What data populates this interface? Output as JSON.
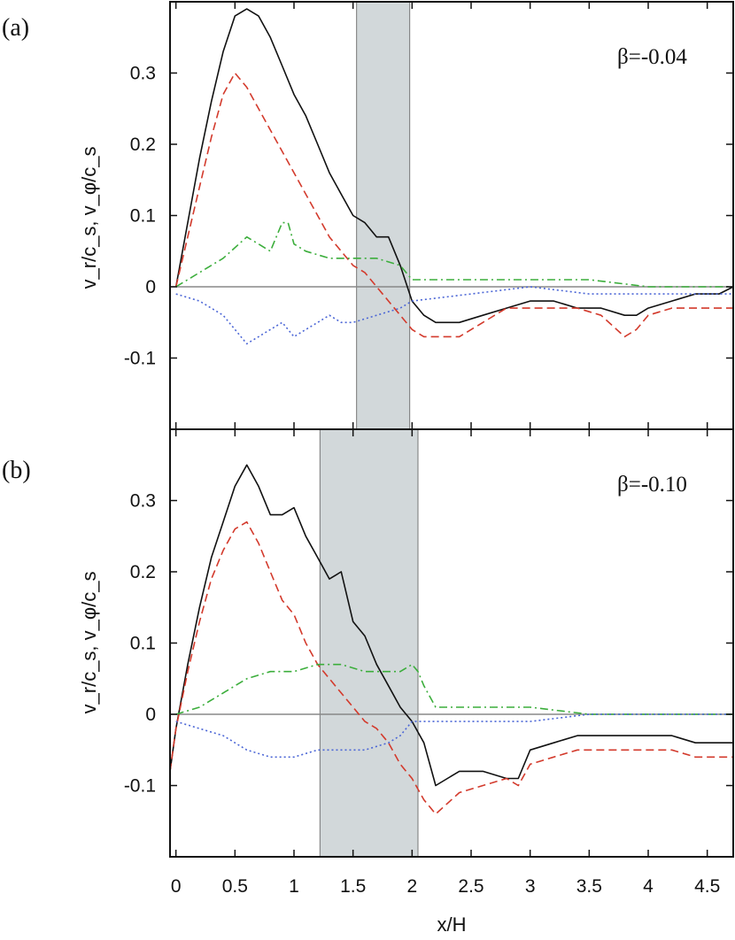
{
  "figure": {
    "xlabel": "x/H",
    "ylabel_a": "v_r/c_s, v_φ/c_s",
    "ylabel_b": "v_r/c_s, v_φ/c_s",
    "xlim": [
      -0.05,
      4.72
    ],
    "xticks": [
      "0",
      "0.5",
      "1",
      "1.5",
      "2",
      "2.5",
      "3",
      "3.5",
      "4",
      "4.5"
    ],
    "xtick_values": [
      0,
      0.5,
      1,
      1.5,
      2,
      2.5,
      3,
      3.5,
      4,
      4.5
    ],
    "yticks": [
      "0.3",
      "0.2",
      "0.1",
      "0",
      "-0.1"
    ],
    "ytick_values": [
      0.3,
      0.2,
      0.1,
      0,
      -0.1
    ],
    "shade_color": "#d2d8da",
    "zero_line_color": "#888888"
  },
  "chart_data": [
    {
      "type": "line",
      "panel_label": "(a)",
      "annotation": "β=-0.04",
      "ylim": [
        -0.2,
        0.4
      ],
      "shaded_region": [
        1.53,
        1.98
      ],
      "series": [
        {
          "color": "#111111",
          "style": "solid",
          "x": [
            0,
            0.1,
            0.2,
            0.3,
            0.4,
            0.5,
            0.6,
            0.7,
            0.8,
            0.9,
            1.0,
            1.1,
            1.2,
            1.3,
            1.4,
            1.5,
            1.6,
            1.7,
            1.8,
            1.9,
            2.0,
            2.1,
            2.2,
            2.4,
            2.6,
            2.8,
            3.0,
            3.2,
            3.4,
            3.6,
            3.8,
            3.9,
            4.0,
            4.2,
            4.4,
            4.6,
            4.72
          ],
          "y": [
            0.0,
            0.09,
            0.18,
            0.26,
            0.33,
            0.38,
            0.39,
            0.38,
            0.35,
            0.31,
            0.27,
            0.24,
            0.2,
            0.16,
            0.13,
            0.1,
            0.09,
            0.07,
            0.07,
            0.03,
            -0.02,
            -0.04,
            -0.05,
            -0.05,
            -0.04,
            -0.03,
            -0.02,
            -0.02,
            -0.03,
            -0.03,
            -0.04,
            -0.04,
            -0.03,
            -0.02,
            -0.01,
            -0.01,
            0.0
          ]
        },
        {
          "color": "#d33a2c",
          "style": "dashed",
          "x": [
            0,
            0.1,
            0.2,
            0.3,
            0.4,
            0.5,
            0.6,
            0.7,
            0.8,
            0.9,
            1.0,
            1.1,
            1.2,
            1.3,
            1.4,
            1.5,
            1.6,
            1.7,
            1.8,
            1.9,
            2.0,
            2.1,
            2.2,
            2.4,
            2.6,
            2.8,
            3.0,
            3.2,
            3.4,
            3.6,
            3.8,
            3.9,
            4.0,
            4.2,
            4.4,
            4.6,
            4.72
          ],
          "y": [
            0.0,
            0.07,
            0.14,
            0.21,
            0.27,
            0.3,
            0.28,
            0.25,
            0.22,
            0.19,
            0.16,
            0.13,
            0.1,
            0.07,
            0.05,
            0.03,
            0.02,
            0.0,
            -0.02,
            -0.04,
            -0.06,
            -0.07,
            -0.07,
            -0.07,
            -0.05,
            -0.03,
            -0.03,
            -0.03,
            -0.03,
            -0.04,
            -0.07,
            -0.06,
            -0.04,
            -0.03,
            -0.03,
            -0.03,
            -0.03
          ]
        },
        {
          "color": "#3cae3c",
          "style": "dashdot",
          "x": [
            0,
            0.2,
            0.4,
            0.6,
            0.7,
            0.8,
            0.9,
            0.95,
            1.0,
            1.1,
            1.3,
            1.5,
            1.7,
            1.9,
            2.0,
            2.5,
            3.0,
            3.5,
            4.0,
            4.5,
            4.72
          ],
          "y": [
            0.0,
            0.02,
            0.04,
            0.07,
            0.06,
            0.05,
            0.09,
            0.09,
            0.06,
            0.05,
            0.04,
            0.04,
            0.04,
            0.03,
            0.01,
            0.01,
            0.01,
            0.01,
            0.0,
            0.0,
            0.0
          ]
        },
        {
          "color": "#4b66d6",
          "style": "dotted",
          "x": [
            0,
            0.2,
            0.4,
            0.6,
            0.7,
            0.8,
            0.9,
            1.0,
            1.1,
            1.2,
            1.3,
            1.4,
            1.5,
            1.7,
            1.9,
            2.0,
            2.5,
            3.0,
            3.5,
            4.0,
            4.5,
            4.72
          ],
          "y": [
            -0.01,
            -0.02,
            -0.04,
            -0.08,
            -0.07,
            -0.06,
            -0.05,
            -0.07,
            -0.06,
            -0.05,
            -0.04,
            -0.05,
            -0.05,
            -0.04,
            -0.03,
            -0.02,
            -0.01,
            0.0,
            -0.01,
            -0.01,
            -0.01,
            -0.01
          ]
        }
      ]
    },
    {
      "type": "line",
      "panel_label": "(b)",
      "annotation": "β=-0.10",
      "ylim": [
        -0.2,
        0.4
      ],
      "shaded_region": [
        1.22,
        2.05
      ],
      "series": [
        {
          "color": "#111111",
          "style": "solid",
          "x": [
            -0.05,
            0,
            0.1,
            0.2,
            0.3,
            0.4,
            0.5,
            0.6,
            0.7,
            0.8,
            0.9,
            1.0,
            1.1,
            1.2,
            1.3,
            1.4,
            1.5,
            1.6,
            1.7,
            1.8,
            1.9,
            2.0,
            2.1,
            2.2,
            2.4,
            2.6,
            2.8,
            2.9,
            3.0,
            3.2,
            3.4,
            3.6,
            3.8,
            4.0,
            4.2,
            4.4,
            4.6,
            4.72
          ],
          "y": [
            -0.08,
            -0.02,
            0.07,
            0.15,
            0.22,
            0.27,
            0.32,
            0.35,
            0.32,
            0.28,
            0.28,
            0.29,
            0.25,
            0.22,
            0.19,
            0.2,
            0.13,
            0.11,
            0.07,
            0.04,
            0.01,
            -0.01,
            -0.04,
            -0.1,
            -0.08,
            -0.08,
            -0.09,
            -0.09,
            -0.05,
            -0.04,
            -0.03,
            -0.03,
            -0.03,
            -0.03,
            -0.03,
            -0.04,
            -0.04,
            -0.04
          ]
        },
        {
          "color": "#d33a2c",
          "style": "dashed",
          "x": [
            -0.05,
            0,
            0.1,
            0.2,
            0.3,
            0.4,
            0.5,
            0.6,
            0.7,
            0.8,
            0.9,
            1.0,
            1.1,
            1.2,
            1.3,
            1.4,
            1.5,
            1.6,
            1.7,
            1.8,
            1.9,
            2.0,
            2.1,
            2.2,
            2.4,
            2.6,
            2.8,
            2.9,
            3.0,
            3.2,
            3.4,
            3.6,
            3.8,
            4.0,
            4.2,
            4.4,
            4.6,
            4.72
          ],
          "y": [
            -0.08,
            -0.02,
            0.06,
            0.13,
            0.19,
            0.23,
            0.26,
            0.27,
            0.24,
            0.2,
            0.16,
            0.14,
            0.1,
            0.07,
            0.05,
            0.03,
            0.01,
            -0.01,
            -0.02,
            -0.04,
            -0.07,
            -0.09,
            -0.12,
            -0.14,
            -0.11,
            -0.1,
            -0.09,
            -0.1,
            -0.07,
            -0.06,
            -0.05,
            -0.05,
            -0.05,
            -0.05,
            -0.05,
            -0.06,
            -0.06,
            -0.06
          ]
        },
        {
          "color": "#3cae3c",
          "style": "dashdot",
          "x": [
            0,
            0.2,
            0.4,
            0.6,
            0.8,
            1.0,
            1.2,
            1.4,
            1.6,
            1.8,
            1.9,
            2.0,
            2.05,
            2.1,
            2.2,
            2.5,
            3.0,
            3.5,
            4.0,
            4.5,
            4.72
          ],
          "y": [
            0.0,
            0.01,
            0.03,
            0.05,
            0.06,
            0.06,
            0.07,
            0.07,
            0.06,
            0.06,
            0.06,
            0.07,
            0.06,
            0.04,
            0.01,
            0.01,
            0.01,
            0.0,
            0.0,
            0.0,
            0.0
          ]
        },
        {
          "color": "#4b66d6",
          "style": "dotted",
          "x": [
            0,
            0.2,
            0.4,
            0.6,
            0.8,
            1.0,
            1.2,
            1.4,
            1.6,
            1.8,
            1.9,
            2.0,
            2.1,
            2.3,
            2.5,
            3.0,
            3.5,
            4.0,
            4.5,
            4.72
          ],
          "y": [
            -0.01,
            -0.02,
            -0.03,
            -0.05,
            -0.06,
            -0.06,
            -0.05,
            -0.05,
            -0.05,
            -0.04,
            -0.03,
            -0.01,
            -0.01,
            -0.01,
            -0.01,
            -0.01,
            0.0,
            0.0,
            0.0,
            0.0
          ]
        }
      ]
    }
  ]
}
